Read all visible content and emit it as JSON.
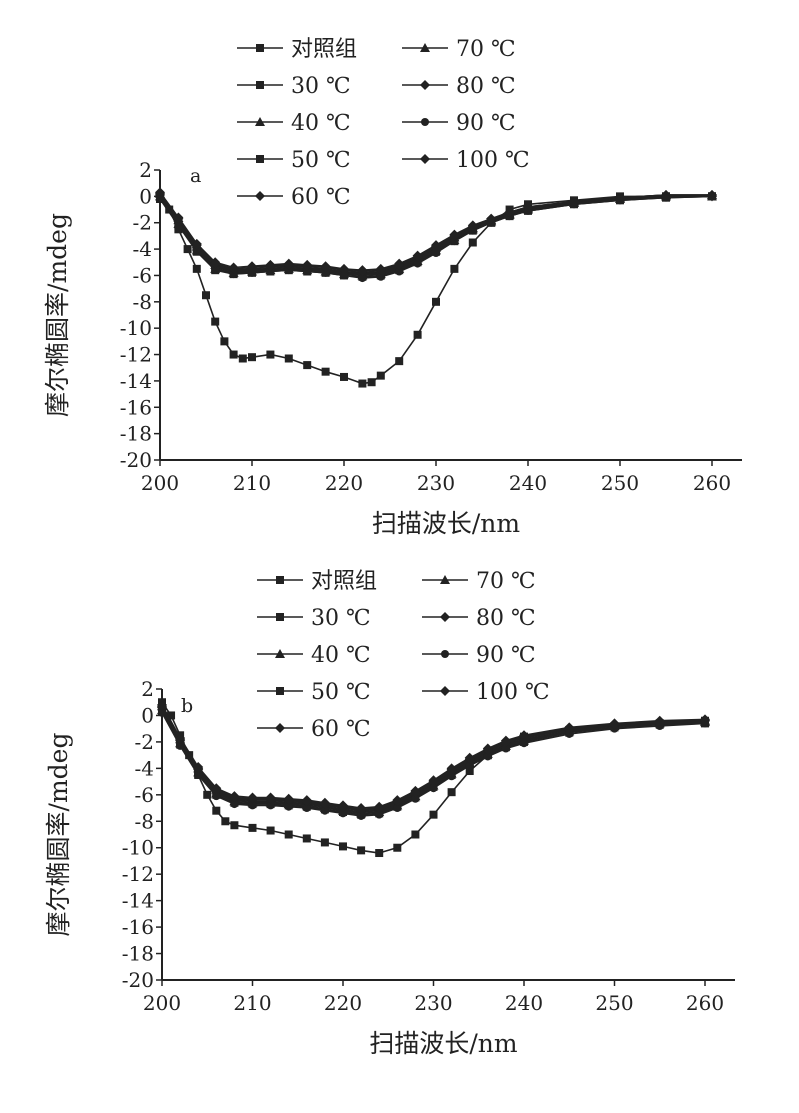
{
  "chart_data": [
    {
      "type": "line",
      "panel_label": "a",
      "xlabel": "扫描波长/nm",
      "ylabel": "摩尔椭圆率/mdeg",
      "xlim": [
        200,
        260
      ],
      "ylim": [
        -20,
        2
      ],
      "x_ticks": [
        "200",
        "210",
        "220",
        "230",
        "240",
        "250",
        "260"
      ],
      "y_ticks": [
        "2",
        "0",
        "-2",
        "-4",
        "-6",
        "-8",
        "-10",
        "-12",
        "-14",
        "-16",
        "-18",
        "-20"
      ],
      "legend": [
        "对照组",
        "30 ℃",
        "40 ℃",
        "50 ℃",
        "60 ℃",
        "70 ℃",
        "80 ℃",
        "90 ℃",
        "100 ℃"
      ],
      "series": [
        {
          "name": "对照组",
          "x": [
            200,
            201,
            202,
            203,
            204,
            205,
            206,
            207,
            208,
            209,
            210,
            212,
            214,
            216,
            218,
            220,
            222,
            223,
            224,
            226,
            228,
            230,
            232,
            234,
            236,
            238,
            240,
            245,
            250,
            255,
            260
          ],
          "y": [
            0,
            -1,
            -2.5,
            -4,
            -5.5,
            -7.5,
            -9.5,
            -11,
            -12,
            -12.3,
            -12.2,
            -12,
            -12.3,
            -12.8,
            -13.3,
            -13.7,
            -14.2,
            -14.1,
            -13.6,
            -12.5,
            -10.5,
            -8,
            -5.5,
            -3.5,
            -2,
            -1,
            -0.6,
            -0.3,
            0,
            0,
            0
          ]
        },
        {
          "name": "30 ℃",
          "x": [
            200,
            202,
            204,
            206,
            208,
            210,
            212,
            214,
            216,
            218,
            220,
            222,
            224,
            226,
            228,
            230,
            232,
            234,
            236,
            238,
            240,
            245,
            250,
            255,
            260
          ],
          "y": [
            0,
            -2,
            -4,
            -5.4,
            -5.7,
            -5.6,
            -5.5,
            -5.4,
            -5.5,
            -5.6,
            -5.8,
            -5.9,
            -5.8,
            -5.4,
            -4.8,
            -4,
            -3.2,
            -2.5,
            -1.9,
            -1.4,
            -1,
            -0.5,
            -0.2,
            0,
            0
          ]
        },
        {
          "name": "40 ℃",
          "x": [
            200,
            202,
            204,
            206,
            208,
            210,
            212,
            214,
            216,
            218,
            220,
            222,
            224,
            226,
            228,
            230,
            232,
            234,
            236,
            238,
            240,
            245,
            250,
            255,
            260
          ],
          "y": [
            0.2,
            -1.8,
            -3.8,
            -5.2,
            -5.6,
            -5.5,
            -5.4,
            -5.3,
            -5.4,
            -5.5,
            -5.7,
            -5.8,
            -5.7,
            -5.3,
            -4.7,
            -3.9,
            -3.1,
            -2.4,
            -1.8,
            -1.3,
            -0.9,
            -0.4,
            -0.1,
            0.1,
            0.1
          ]
        },
        {
          "name": "50 ℃",
          "x": [
            200,
            202,
            204,
            206,
            208,
            210,
            212,
            214,
            216,
            218,
            220,
            222,
            224,
            226,
            228,
            230,
            232,
            234,
            236,
            238,
            240,
            245,
            250,
            255,
            260
          ],
          "y": [
            -0.2,
            -2.2,
            -4.2,
            -5.6,
            -5.9,
            -5.8,
            -5.7,
            -5.6,
            -5.7,
            -5.8,
            -6,
            -6.1,
            -6,
            -5.6,
            -5,
            -4.2,
            -3.4,
            -2.6,
            -2,
            -1.5,
            -1.1,
            -0.6,
            -0.3,
            -0.1,
            0
          ]
        },
        {
          "name": "60 ℃",
          "x": [
            200,
            202,
            204,
            206,
            208,
            210,
            212,
            214,
            216,
            218,
            220,
            222,
            224,
            226,
            228,
            230,
            232,
            234,
            236,
            238,
            240,
            245,
            250,
            255,
            260
          ],
          "y": [
            0.3,
            -1.6,
            -3.6,
            -5,
            -5.4,
            -5.3,
            -5.2,
            -5.1,
            -5.2,
            -5.3,
            -5.5,
            -5.6,
            -5.5,
            -5.1,
            -4.5,
            -3.7,
            -2.9,
            -2.2,
            -1.7,
            -1.2,
            -0.8,
            -0.4,
            -0.1,
            0.1,
            0.1
          ]
        },
        {
          "name": "70 ℃",
          "x": [
            200,
            202,
            204,
            206,
            208,
            210,
            212,
            214,
            216,
            218,
            220,
            222,
            224,
            226,
            228,
            230,
            232,
            234,
            236,
            238,
            240,
            245,
            250,
            255,
            260
          ],
          "y": [
            0,
            -2.1,
            -4.1,
            -5.5,
            -5.8,
            -5.7,
            -5.6,
            -5.5,
            -5.6,
            -5.7,
            -5.9,
            -6,
            -5.9,
            -5.5,
            -4.9,
            -4.1,
            -3.3,
            -2.5,
            -1.9,
            -1.4,
            -1,
            -0.5,
            -0.2,
            0,
            0
          ]
        },
        {
          "name": "80 ℃",
          "x": [
            200,
            202,
            204,
            206,
            208,
            210,
            212,
            214,
            216,
            218,
            220,
            222,
            224,
            226,
            228,
            230,
            232,
            234,
            236,
            238,
            240,
            245,
            250,
            255,
            260
          ],
          "y": [
            0.1,
            -1.9,
            -3.9,
            -5.3,
            -5.7,
            -5.6,
            -5.5,
            -5.4,
            -5.5,
            -5.6,
            -5.8,
            -5.9,
            -5.8,
            -5.4,
            -4.8,
            -4,
            -3.2,
            -2.4,
            -1.8,
            -1.3,
            -0.9,
            -0.5,
            -0.2,
            0,
            0
          ]
        },
        {
          "name": "90 ℃",
          "x": [
            200,
            202,
            204,
            206,
            208,
            210,
            212,
            214,
            216,
            218,
            220,
            222,
            224,
            226,
            228,
            230,
            232,
            234,
            236,
            238,
            240,
            245,
            250,
            255,
            260
          ],
          "y": [
            -0.1,
            -2,
            -4,
            -5.5,
            -5.9,
            -5.8,
            -5.7,
            -5.6,
            -5.7,
            -5.8,
            -6,
            -6.2,
            -6.1,
            -5.7,
            -5.1,
            -4.3,
            -3.4,
            -2.6,
            -2,
            -1.5,
            -1.1,
            -0.6,
            -0.3,
            -0.1,
            0
          ]
        },
        {
          "name": "100 ℃",
          "x": [
            200,
            202,
            204,
            206,
            208,
            210,
            212,
            214,
            216,
            218,
            220,
            222,
            224,
            226,
            228,
            230,
            232,
            234,
            236,
            238,
            240,
            245,
            250,
            255,
            260
          ],
          "y": [
            0.2,
            -1.7,
            -3.7,
            -5.1,
            -5.5,
            -5.4,
            -5.3,
            -5.2,
            -5.3,
            -5.4,
            -5.6,
            -5.7,
            -5.6,
            -5.2,
            -4.6,
            -3.8,
            -3,
            -2.3,
            -1.7,
            -1.2,
            -0.8,
            -0.4,
            -0.1,
            0.1,
            0.1
          ]
        }
      ]
    },
    {
      "type": "line",
      "panel_label": "b",
      "xlabel": "扫描波长/nm",
      "ylabel": "摩尔椭圆率/mdeg",
      "xlim": [
        200,
        260
      ],
      "ylim": [
        -20,
        2
      ],
      "x_ticks": [
        "200",
        "210",
        "220",
        "230",
        "240",
        "250",
        "260"
      ],
      "y_ticks": [
        "2",
        "0",
        "-2",
        "-4",
        "-6",
        "-8",
        "-10",
        "-12",
        "-14",
        "-16",
        "-18",
        "-20"
      ],
      "legend": [
        "对照组",
        "30 ℃",
        "40 ℃",
        "50 ℃",
        "60 ℃",
        "70 ℃",
        "80 ℃",
        "90 ℃",
        "100 ℃"
      ],
      "series": [
        {
          "name": "对照组",
          "x": [
            200,
            201,
            202,
            203,
            204,
            205,
            206,
            207,
            208,
            210,
            212,
            214,
            216,
            218,
            220,
            222,
            224,
            226,
            228,
            230,
            232,
            234,
            236,
            238,
            240,
            245,
            250,
            255,
            260
          ],
          "y": [
            1,
            0,
            -1.5,
            -3,
            -4.5,
            -6,
            -7.2,
            -8,
            -8.3,
            -8.5,
            -8.7,
            -9,
            -9.3,
            -9.6,
            -9.9,
            -10.2,
            -10.4,
            -10,
            -9,
            -7.5,
            -5.8,
            -4.2,
            -3,
            -2.2,
            -1.6,
            -1.1,
            -0.8,
            -0.6,
            -0.4
          ]
        },
        {
          "name": "30 ℃",
          "x": [
            200,
            202,
            204,
            206,
            208,
            210,
            212,
            214,
            216,
            218,
            220,
            222,
            224,
            226,
            228,
            230,
            232,
            234,
            236,
            238,
            240,
            245,
            250,
            255,
            260
          ],
          "y": [
            0.5,
            -2,
            -4.2,
            -5.8,
            -6.4,
            -6.5,
            -6.5,
            -6.6,
            -6.7,
            -6.9,
            -7.1,
            -7.3,
            -7.2,
            -6.7,
            -6,
            -5.2,
            -4.3,
            -3.5,
            -2.8,
            -2.2,
            -1.8,
            -1.2,
            -0.8,
            -0.6,
            -0.5
          ]
        },
        {
          "name": "40 ℃",
          "x": [
            200,
            202,
            204,
            206,
            208,
            210,
            212,
            214,
            216,
            218,
            220,
            222,
            224,
            226,
            228,
            230,
            232,
            234,
            236,
            238,
            240,
            245,
            250,
            255,
            260
          ],
          "y": [
            0.7,
            -1.8,
            -4,
            -5.6,
            -6.2,
            -6.3,
            -6.3,
            -6.4,
            -6.5,
            -6.7,
            -6.9,
            -7.1,
            -7,
            -6.5,
            -5.8,
            -5,
            -4.1,
            -3.3,
            -2.6,
            -2,
            -1.6,
            -1,
            -0.7,
            -0.5,
            -0.4
          ]
        },
        {
          "name": "50 ℃",
          "x": [
            200,
            202,
            204,
            206,
            208,
            210,
            212,
            214,
            216,
            218,
            220,
            222,
            224,
            226,
            228,
            230,
            232,
            234,
            236,
            238,
            240,
            245,
            250,
            255,
            260
          ],
          "y": [
            0.3,
            -2.2,
            -4.4,
            -6,
            -6.6,
            -6.7,
            -6.7,
            -6.8,
            -6.9,
            -7.1,
            -7.3,
            -7.5,
            -7.4,
            -6.9,
            -6.2,
            -5.4,
            -4.5,
            -3.7,
            -3,
            -2.4,
            -2,
            -1.3,
            -0.9,
            -0.7,
            -0.6
          ]
        },
        {
          "name": "60 ℃",
          "x": [
            200,
            202,
            204,
            206,
            208,
            210,
            212,
            214,
            216,
            218,
            220,
            222,
            224,
            226,
            228,
            230,
            232,
            234,
            236,
            238,
            240,
            245,
            250,
            255,
            260
          ],
          "y": [
            0.8,
            -1.7,
            -3.9,
            -5.5,
            -6.1,
            -6.2,
            -6.2,
            -6.3,
            -6.4,
            -6.6,
            -6.8,
            -7,
            -6.9,
            -6.4,
            -5.7,
            -4.9,
            -4,
            -3.2,
            -2.5,
            -1.9,
            -1.5,
            -0.9,
            -0.6,
            -0.4,
            -0.3
          ]
        },
        {
          "name": "70 ℃",
          "x": [
            200,
            202,
            204,
            206,
            208,
            210,
            212,
            214,
            216,
            218,
            220,
            222,
            224,
            226,
            228,
            230,
            232,
            234,
            236,
            238,
            240,
            245,
            250,
            255,
            260
          ],
          "y": [
            0.4,
            -2.1,
            -4.3,
            -5.9,
            -6.5,
            -6.6,
            -6.6,
            -6.7,
            -6.8,
            -7,
            -7.2,
            -7.4,
            -7.3,
            -6.8,
            -6.1,
            -5.3,
            -4.4,
            -3.6,
            -2.9,
            -2.3,
            -1.9,
            -1.2,
            -0.8,
            -0.6,
            -0.5
          ]
        },
        {
          "name": "80 ℃",
          "x": [
            200,
            202,
            204,
            206,
            208,
            210,
            212,
            214,
            216,
            218,
            220,
            222,
            224,
            226,
            228,
            230,
            232,
            234,
            236,
            238,
            240,
            245,
            250,
            255,
            260
          ],
          "y": [
            0.6,
            -1.9,
            -4.1,
            -5.7,
            -6.3,
            -6.4,
            -6.4,
            -6.5,
            -6.6,
            -6.8,
            -7,
            -7.2,
            -7.1,
            -6.6,
            -5.9,
            -5.1,
            -4.2,
            -3.4,
            -2.7,
            -2.1,
            -1.7,
            -1.1,
            -0.7,
            -0.5,
            -0.4
          ]
        },
        {
          "name": "90 ℃",
          "x": [
            200,
            202,
            204,
            206,
            208,
            210,
            212,
            214,
            216,
            218,
            220,
            222,
            224,
            226,
            228,
            230,
            232,
            234,
            236,
            238,
            240,
            245,
            250,
            255,
            260
          ],
          "y": [
            0.2,
            -2.3,
            -4.5,
            -6.1,
            -6.7,
            -6.8,
            -6.8,
            -6.9,
            -7,
            -7.2,
            -7.4,
            -7.6,
            -7.5,
            -7,
            -6.3,
            -5.5,
            -4.6,
            -3.8,
            -3.1,
            -2.5,
            -2.1,
            -1.4,
            -1,
            -0.8,
            -0.6
          ]
        },
        {
          "name": "100 ℃",
          "x": [
            200,
            202,
            204,
            206,
            208,
            210,
            212,
            214,
            216,
            218,
            220,
            222,
            224,
            226,
            228,
            230,
            232,
            234,
            236,
            238,
            240,
            245,
            250,
            255,
            260
          ],
          "y": [
            0.7,
            -1.8,
            -4,
            -5.6,
            -6.2,
            -6.3,
            -6.3,
            -6.4,
            -6.5,
            -6.7,
            -6.9,
            -7.1,
            -7,
            -6.5,
            -5.8,
            -5,
            -4.1,
            -3.3,
            -2.6,
            -2,
            -1.6,
            -1,
            -0.7,
            -0.5,
            -0.4
          ]
        }
      ]
    }
  ]
}
